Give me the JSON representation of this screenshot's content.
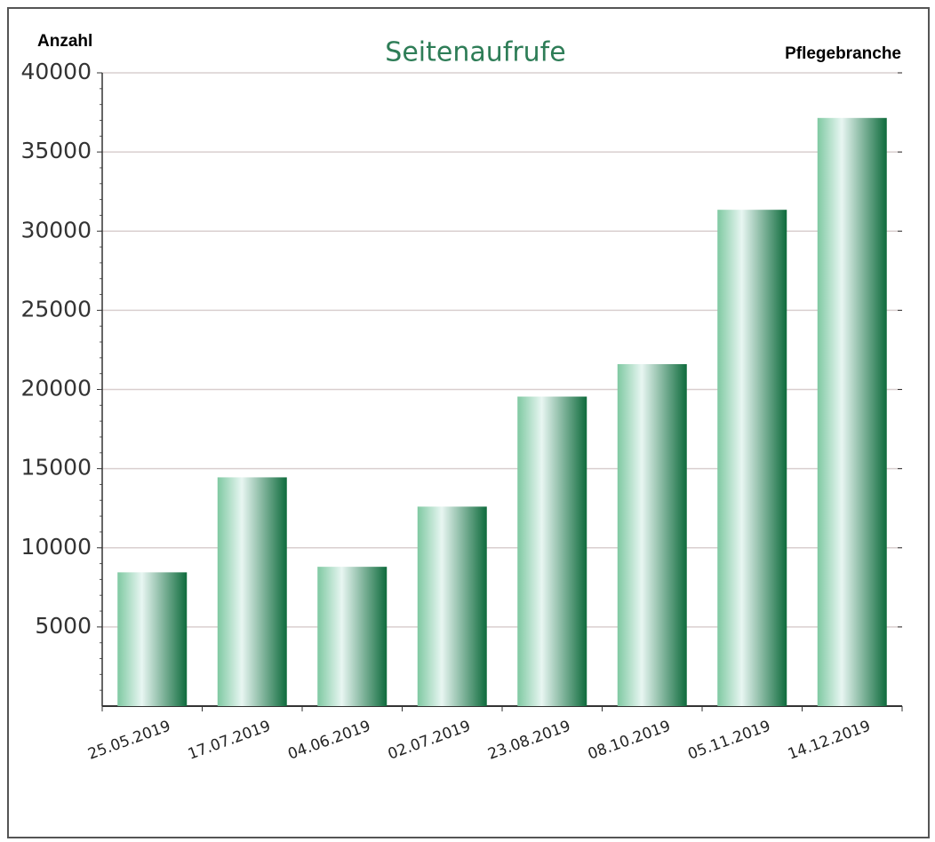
{
  "chart_data": {
    "type": "bar",
    "title": "Seitenaufrufe",
    "y_label": "Anzahl",
    "annotation": "Pflegebranche",
    "categories": [
      "25.05.2019",
      "17.07.2019",
      "04.06.2019",
      "02.07.2019",
      "23.08.2019",
      "08.10.2019",
      "05.11.2019",
      "14.12.2019"
    ],
    "values": [
      8450,
      14450,
      8800,
      12600,
      19550,
      21600,
      31350,
      37150
    ],
    "color": "#0e6b3c",
    "ylim": [
      0,
      40000
    ],
    "yticks": [
      5000,
      10000,
      15000,
      20000,
      25000,
      30000,
      35000,
      40000
    ],
    "grid": true
  }
}
